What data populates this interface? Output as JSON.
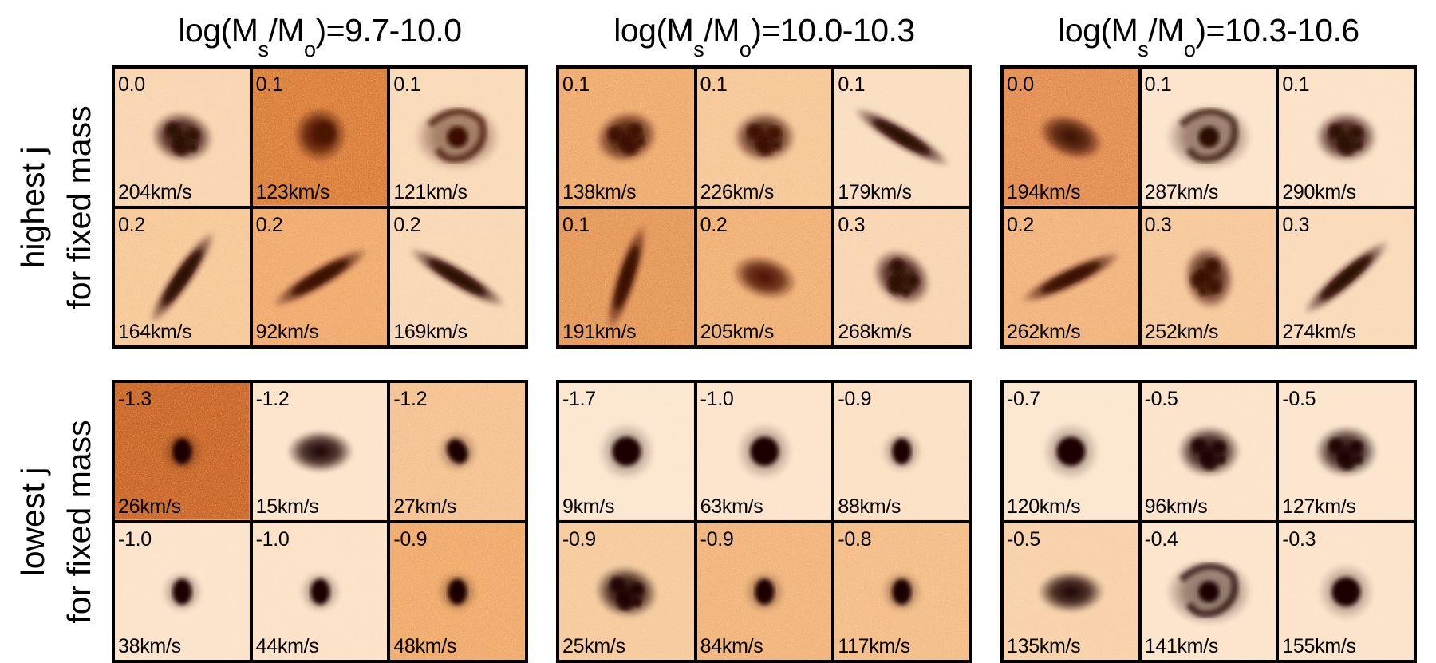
{
  "columns": [
    {
      "title_prefix": "log(M",
      "title_sub1": "s",
      "title_slash": "/M",
      "title_sub2": "o",
      "title_suffix": ")=9.7-10.0"
    },
    {
      "title_prefix": "log(M",
      "title_sub1": "s",
      "title_slash": "/M",
      "title_sub2": "o",
      "title_suffix": ")=10.0-10.3"
    },
    {
      "title_prefix": "log(M",
      "title_sub1": "s",
      "title_slash": "/M",
      "title_sub2": "o",
      "title_suffix": ")=10.3-10.6"
    }
  ],
  "rows": [
    {
      "label_line1": "highest j",
      "label_line2": "for fixed mass"
    },
    {
      "label_line1": "lowest j",
      "label_line2": "for fixed mass"
    }
  ],
  "panels": [
    [
      {
        "cells": [
          {
            "value": "0.0",
            "velocity": "204km/s",
            "bg": "#f8d3ad",
            "core": "#2a0800",
            "shape": "clumpy",
            "rot": 10
          },
          {
            "value": "0.1",
            "velocity": "123km/s",
            "bg": "#d97a32",
            "core": "#4a1200",
            "shape": "round",
            "rot": 0
          },
          {
            "value": "0.1",
            "velocity": "121km/s",
            "bg": "#f9d8b5",
            "core": "#3a0c00",
            "shape": "spiral",
            "rot": 0
          },
          {
            "value": "0.2",
            "velocity": "164km/s",
            "bg": "#f6c694",
            "core": "#2a0800",
            "shape": "edge",
            "rot": -55
          },
          {
            "value": "0.2",
            "velocity": "92km/s",
            "bg": "#f0a767",
            "core": "#3a0c00",
            "shape": "edge",
            "rot": -30
          },
          {
            "value": "0.2",
            "velocity": "169km/s",
            "bg": "#f8d5b1",
            "core": "#2a0800",
            "shape": "edge",
            "rot": 30
          }
        ]
      },
      {
        "cells": [
          {
            "value": "0.1",
            "velocity": "138km/s",
            "bg": "#eea868",
            "core": "#3a0c00",
            "shape": "clumpy",
            "rot": -15
          },
          {
            "value": "0.1",
            "velocity": "226km/s",
            "bg": "#f5c593",
            "core": "#3a0c00",
            "shape": "clumpy",
            "rot": 0
          },
          {
            "value": "0.1",
            "velocity": "179km/s",
            "bg": "#f9dcbd",
            "core": "#2a0800",
            "shape": "edge",
            "rot": 30
          },
          {
            "value": "0.1",
            "velocity": "191km/s",
            "bg": "#e49452",
            "core": "#3a0c00",
            "shape": "edge",
            "rot": -72
          },
          {
            "value": "0.2",
            "velocity": "205km/s",
            "bg": "#f0ae70",
            "core": "#4a1200",
            "shape": "oval",
            "rot": 15
          },
          {
            "value": "0.3",
            "velocity": "268km/s",
            "bg": "#f8d3ad",
            "core": "#2a0800",
            "shape": "clumpy",
            "rot": 40
          }
        ]
      },
      {
        "cells": [
          {
            "value": "0.0",
            "velocity": "194km/s",
            "bg": "#e2894a",
            "core": "#3a0c00",
            "shape": "oval",
            "rot": 20
          },
          {
            "value": "0.1",
            "velocity": "287km/s",
            "bg": "#fbe3c9",
            "core": "#2a0800",
            "shape": "spiral",
            "rot": 0
          },
          {
            "value": "0.1",
            "velocity": "290km/s",
            "bg": "#fbe0c4",
            "core": "#2a0800",
            "shape": "clumpy",
            "rot": 0
          },
          {
            "value": "0.2",
            "velocity": "262km/s",
            "bg": "#f1b077",
            "core": "#3a0c00",
            "shape": "edge",
            "rot": -25
          },
          {
            "value": "0.3",
            "velocity": "252km/s",
            "bg": "#f5c696",
            "core": "#3a0c00",
            "shape": "clumpy",
            "rot": 80
          },
          {
            "value": "0.3",
            "velocity": "274km/s",
            "bg": "#f9d8b6",
            "core": "#2a0800",
            "shape": "edge",
            "rot": -40
          }
        ]
      }
    ],
    [
      {
        "cells": [
          {
            "value": "-1.3",
            "velocity": "26km/s",
            "bg": "#c9621f",
            "core": "#1a0500",
            "shape": "small",
            "rot": 0
          },
          {
            "value": "-1.2",
            "velocity": "15km/s",
            "bg": "#fbe3c8",
            "core": "#1a0500",
            "shape": "oval",
            "rot": 0
          },
          {
            "value": "-1.2",
            "velocity": "27km/s",
            "bg": "#f4c08c",
            "core": "#1a0500",
            "shape": "small",
            "rot": -30
          },
          {
            "value": "-1.0",
            "velocity": "38km/s",
            "bg": "#fbe2c8",
            "core": "#1a0500",
            "shape": "small",
            "rot": 0
          },
          {
            "value": "-1.0",
            "velocity": "44km/s",
            "bg": "#fbe0c4",
            "core": "#1a0500",
            "shape": "small",
            "rot": 0
          },
          {
            "value": "-0.9",
            "velocity": "48km/s",
            "bg": "#f0a765",
            "core": "#1a0500",
            "shape": "small",
            "rot": 0
          }
        ]
      },
      {
        "cells": [
          {
            "value": "-1.7",
            "velocity": "9km/s",
            "bg": "#fbe5cd",
            "core": "#1a0500",
            "shape": "compact",
            "rot": 0
          },
          {
            "value": "-1.0",
            "velocity": "63km/s",
            "bg": "#fbe3c9",
            "core": "#1a0500",
            "shape": "compact",
            "rot": 0
          },
          {
            "value": "-0.9",
            "velocity": "88km/s",
            "bg": "#fbdfc2",
            "core": "#1a0500",
            "shape": "small",
            "rot": 0
          },
          {
            "value": "-0.9",
            "velocity": "25km/s",
            "bg": "#f6c898",
            "core": "#1a0500",
            "shape": "clumpy",
            "rot": 10
          },
          {
            "value": "-0.9",
            "velocity": "84km/s",
            "bg": "#f1b176",
            "core": "#1a0500",
            "shape": "small",
            "rot": 0
          },
          {
            "value": "-0.8",
            "velocity": "117km/s",
            "bg": "#f3ba82",
            "core": "#1a0500",
            "shape": "small",
            "rot": 0
          }
        ]
      },
      {
        "cells": [
          {
            "value": "-0.7",
            "velocity": "120km/s",
            "bg": "#fbe5cd",
            "core": "#1a0500",
            "shape": "compact",
            "rot": 0
          },
          {
            "value": "-0.5",
            "velocity": "96km/s",
            "bg": "#fbe2c7",
            "core": "#1a0500",
            "shape": "clumpy",
            "rot": 0
          },
          {
            "value": "-0.5",
            "velocity": "127km/s",
            "bg": "#fbe4cb",
            "core": "#1a0500",
            "shape": "clumpy",
            "rot": 0
          },
          {
            "value": "-0.5",
            "velocity": "135km/s",
            "bg": "#f7cfa5",
            "core": "#1a0500",
            "shape": "oval",
            "rot": 0
          },
          {
            "value": "-0.4",
            "velocity": "141km/s",
            "bg": "#fbe3c9",
            "core": "#1a0500",
            "shape": "spiral",
            "rot": 0
          },
          {
            "value": "-0.3",
            "velocity": "155km/s",
            "bg": "#fbe2c7",
            "core": "#1a0500",
            "shape": "compact",
            "rot": 0
          }
        ]
      }
    ]
  ]
}
